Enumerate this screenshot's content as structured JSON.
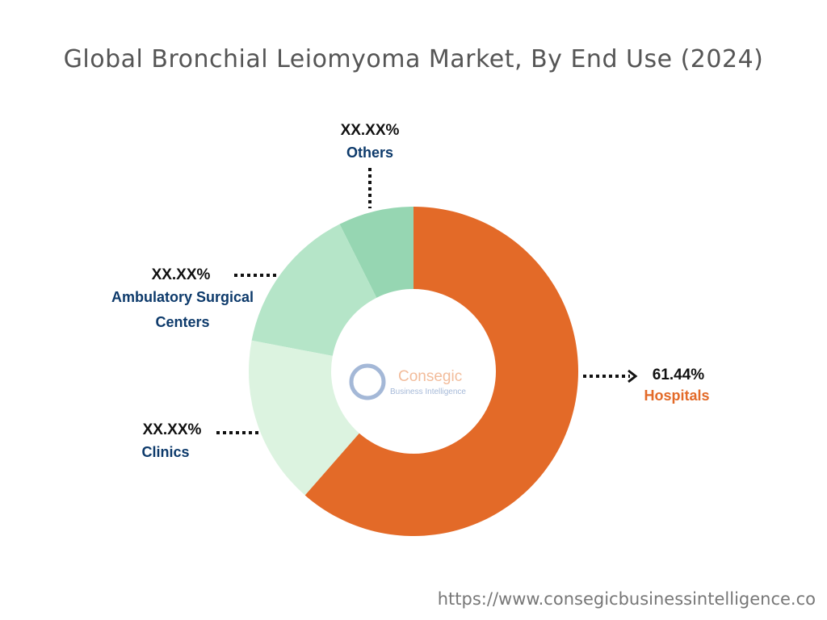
{
  "chart_data": {
    "type": "donut",
    "title": "Global Bronchial Leiomyoma Market, By End Use (2024)",
    "categories": [
      "Hospitals",
      "Clinics",
      "Ambulatory Surgical Centers",
      "Others"
    ],
    "values": [
      61.44,
      16.56,
      14.6,
      7.4
    ],
    "value_labels": [
      "61.44%",
      "XX.XX%",
      "XX.XX%",
      "XX.XX%"
    ],
    "colors": [
      "#e36a28",
      "#dcf3e0",
      "#b5e5c8",
      "#96d6b2"
    ]
  },
  "watermark": {
    "name": "Consegic",
    "tagline": "Business Intelligence"
  },
  "footer": "https://www.consegicbusinessintelligence.co"
}
